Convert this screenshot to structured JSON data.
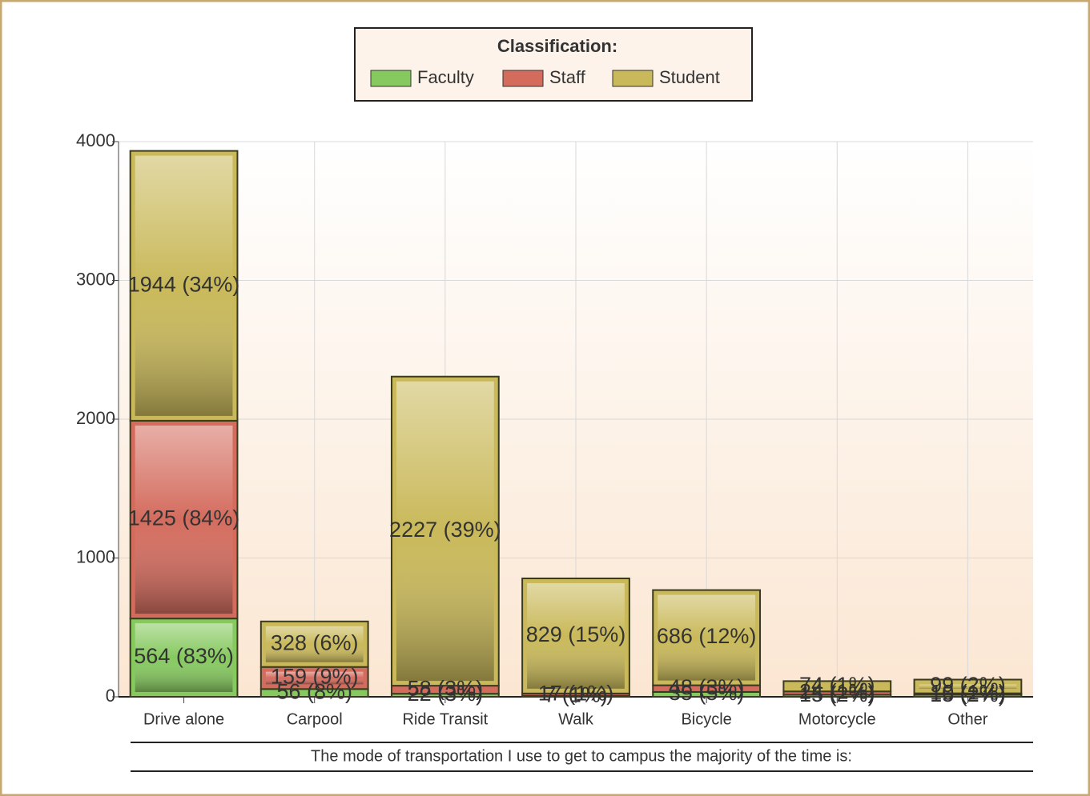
{
  "chart_data": {
    "type": "stacked_bar",
    "legend_title": "Classification:",
    "xlabel": "The mode of transportation I use to get to campus the majority of the time is:",
    "categories": [
      "Drive alone",
      "Carpool",
      "Ride Transit",
      "Walk",
      "Bicycle",
      "Motorcycle",
      "Other"
    ],
    "series": [
      {
        "name": "Faculty",
        "color": "#86c95f",
        "values": [
          564,
          56,
          22,
          7,
          35,
          15,
          15
        ],
        "value_labels": [
          "564 (83%)",
          "56 (8%)",
          "22 (3%)",
          "7 (1%)",
          "35 (5%)",
          "15 (2%)",
          "15 (2%)"
        ]
      },
      {
        "name": "Staff",
        "color": "#d46c5e",
        "values": [
          1425,
          159,
          58,
          17,
          48,
          24,
          10
        ],
        "value_labels": [
          "1425 (84%)",
          "159 (9%)",
          "58 (3%)",
          "17 (1%)",
          "48 (3%)",
          "24 (1%)",
          "10 (1%)"
        ]
      },
      {
        "name": "Student",
        "color": "#c9b95a",
        "values": [
          1944,
          328,
          2227,
          829,
          686,
          74,
          99
        ],
        "value_labels": [
          "1944 (34%)",
          "328 (6%)",
          "2227 (39%)",
          "829 (15%)",
          "686 (12%)",
          "74 (1%)",
          "99 (2%)"
        ]
      }
    ],
    "ylim": [
      0,
      4000
    ],
    "yticks": [
      0,
      1000,
      2000,
      3000,
      4000
    ],
    "grid": true
  }
}
